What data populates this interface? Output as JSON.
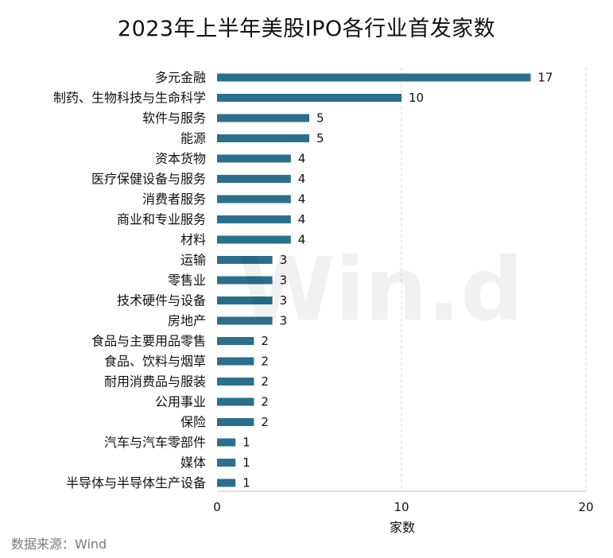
{
  "title": "2023年上半年美股IPO各行业首发家数",
  "source": "数据来源：Wind",
  "watermark": "Win.d",
  "colors": {
    "bar": "#2a708c",
    "grid": "#d9d9d9",
    "axis": "#bfbfbf",
    "text": "#111111"
  },
  "chart_data": {
    "type": "bar",
    "orientation": "horizontal",
    "categories": [
      "多元金融",
      "制药、生物科技与生命科学",
      "软件与服务",
      "能源",
      "资本货物",
      "医疗保健设备与服务",
      "消费者服务",
      "商业和专业服务",
      "材料",
      "运输",
      "零售业",
      "技术硬件与设备",
      "房地产",
      "食品与主要用品零售",
      "食品、饮料与烟草",
      "耐用消费品与服装",
      "公用事业",
      "保险",
      "汽车与汽车零部件",
      "媒体",
      "半导体与半导体生产设备"
    ],
    "values": [
      17,
      10,
      5,
      5,
      4,
      4,
      4,
      4,
      4,
      3,
      3,
      3,
      3,
      2,
      2,
      2,
      2,
      2,
      1,
      1,
      1
    ],
    "xlabel": "家数",
    "ylabel": "",
    "xlim": [
      0,
      20
    ],
    "xticks": [
      0,
      10,
      20
    ],
    "grid": "vertical-dashed",
    "data_labels": true
  }
}
